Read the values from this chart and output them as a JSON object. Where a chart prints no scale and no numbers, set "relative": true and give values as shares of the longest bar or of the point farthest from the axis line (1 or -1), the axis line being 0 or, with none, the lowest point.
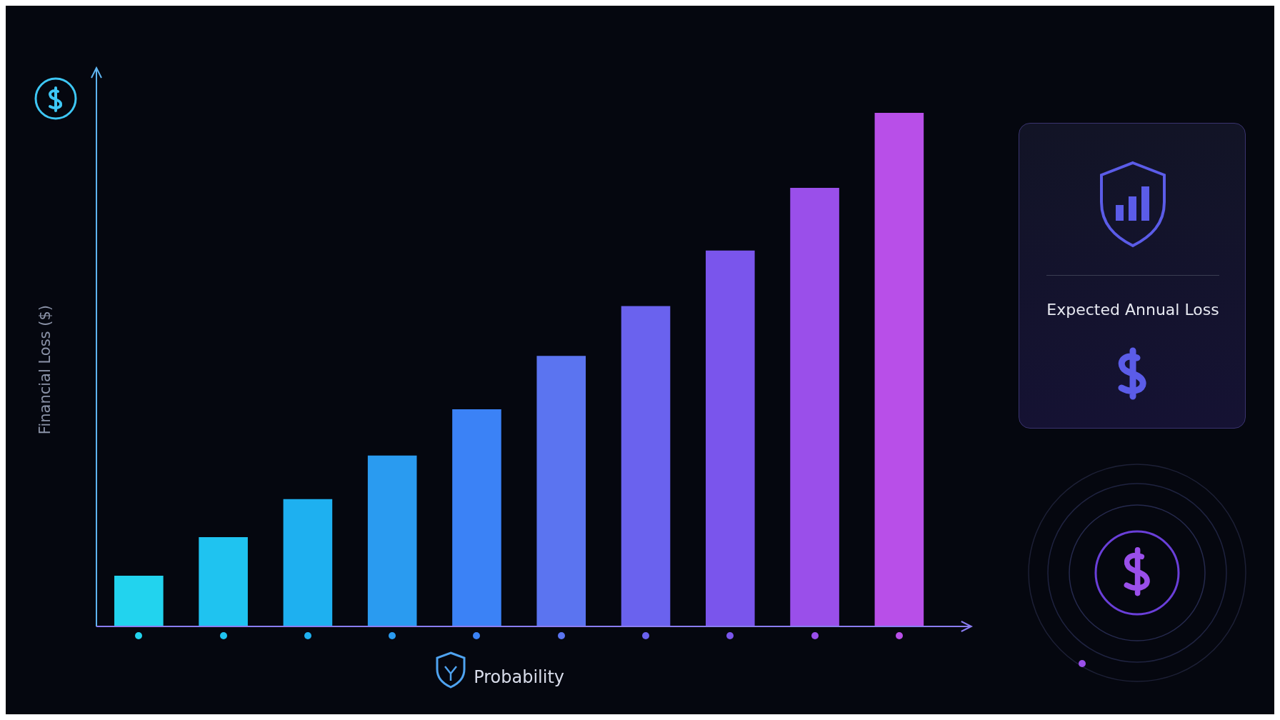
{
  "chart_data": {
    "type": "bar",
    "relative": true,
    "xlabel": "Probability",
    "ylabel": "Financial Loss ($)",
    "annotations": [
      "Expected Annual Loss"
    ],
    "categories": [
      null,
      null,
      null,
      null,
      null,
      null,
      null,
      null,
      null,
      null
    ],
    "values": [
      0.099,
      0.174,
      0.248,
      0.333,
      0.423,
      0.527,
      0.624,
      0.732,
      0.854,
      1
    ],
    "colors": [
      "#22d3ee",
      "#1fc3f0",
      "#1eb0f0",
      "#2a9bf0",
      "#3b82f6",
      "#5b74f0",
      "#6a62ee",
      "#7a55ec",
      "#9a4fea",
      "#b84fe8"
    ]
  }
}
